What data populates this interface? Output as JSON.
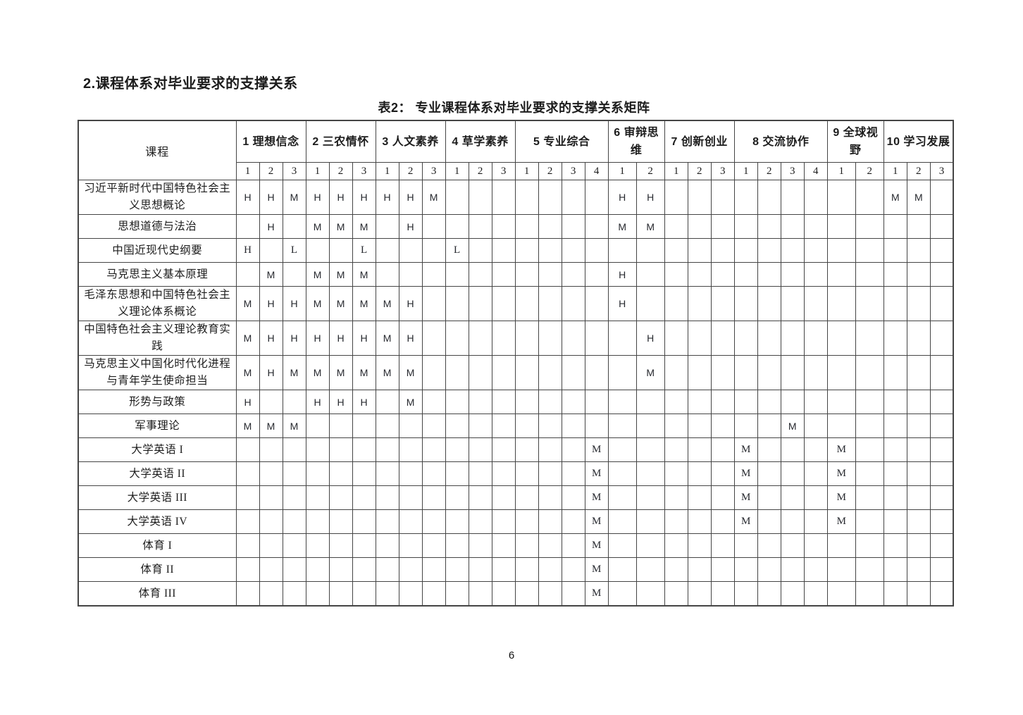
{
  "colors": {
    "ink": "#1c1c1c",
    "border": "#454545",
    "background": "#ffffff"
  },
  "page": {
    "heading": "2.课程体系对毕业要求的支撑关系",
    "caption": "表2： 专业课程体系对毕业要求的支撑关系矩阵",
    "page_number": "6"
  },
  "table": {
    "course_header": "课程",
    "groups": [
      {
        "label": "1 理想信念",
        "subcols": [
          "1",
          "2",
          "3"
        ]
      },
      {
        "label": "2 三农情怀",
        "subcols": [
          "1",
          "2",
          "3"
        ]
      },
      {
        "label": "3 人文素养",
        "subcols": [
          "1",
          "2",
          "3"
        ]
      },
      {
        "label": "4 草学素养",
        "subcols": [
          "1",
          "2",
          "3"
        ]
      },
      {
        "label": "5 专业综合",
        "subcols": [
          "1",
          "2",
          "3",
          "4"
        ]
      },
      {
        "label": "6 审辩思维",
        "subcols": [
          "1",
          "2"
        ]
      },
      {
        "label": "7 创新创业",
        "subcols": [
          "1",
          "2",
          "3"
        ]
      },
      {
        "label": "8 交流协作",
        "subcols": [
          "1",
          "2",
          "3",
          "4"
        ]
      },
      {
        "label": "9 全球视野",
        "subcols": [
          "1",
          "2"
        ]
      },
      {
        "label": "10 学习发展",
        "subcols": [
          "1",
          "2",
          "3"
        ]
      }
    ],
    "legend_levels": [
      "H",
      "M",
      "L"
    ],
    "rows": [
      {
        "course": "习近平新时代中国特色社会主义思想概论",
        "values": [
          "H",
          "H",
          "M",
          "H",
          "H",
          "H",
          "H",
          "H",
          "M",
          "",
          "",
          "",
          "",
          "",
          "",
          "",
          "H",
          "H",
          "",
          "",
          "",
          "",
          "",
          "",
          "",
          "",
          "",
          "M",
          "M",
          ""
        ]
      },
      {
        "course": "思想道德与法治",
        "values": [
          "",
          "H",
          "",
          "M",
          "M",
          "M",
          "",
          "H",
          "",
          "",
          "",
          "",
          "",
          "",
          "",
          "",
          "M",
          "M",
          "",
          "",
          "",
          "",
          "",
          "",
          "",
          "",
          "",
          "",
          "",
          ""
        ]
      },
      {
        "course": "中国近现代史纲要",
        "values": [
          "H",
          "",
          "L",
          "",
          "",
          "L",
          "",
          "",
          "",
          "L",
          "",
          "",
          "",
          "",
          "",
          "",
          "",
          "",
          "",
          "",
          "",
          "",
          "",
          "",
          "",
          "",
          "",
          "",
          "",
          ""
        ]
      },
      {
        "course": "马克思主义基本原理",
        "values": [
          "",
          "M",
          "",
          "M",
          "M",
          "M",
          "",
          "",
          "",
          "",
          "",
          "",
          "",
          "",
          "",
          "",
          "H",
          "",
          "",
          "",
          "",
          "",
          "",
          "",
          "",
          "",
          "",
          "",
          "",
          ""
        ]
      },
      {
        "course": "毛泽东思想和中国特色社会主义理论体系概论",
        "values": [
          "M",
          "H",
          "H",
          "M",
          "M",
          "M",
          "M",
          "H",
          "",
          "",
          "",
          "",
          "",
          "",
          "",
          "",
          "H",
          "",
          "",
          "",
          "",
          "",
          "",
          "",
          "",
          "",
          "",
          "",
          "",
          ""
        ]
      },
      {
        "course": "中国特色社会主义理论教育实践",
        "values": [
          "M",
          "H",
          "H",
          "H",
          "H",
          "H",
          "M",
          "H",
          "",
          "",
          "",
          "",
          "",
          "",
          "",
          "",
          "",
          "H",
          "",
          "",
          "",
          "",
          "",
          "",
          "",
          "",
          "",
          "",
          "",
          ""
        ]
      },
      {
        "course": "马克思主义中国化时代化进程与青年学生使命担当",
        "values": [
          "M",
          "H",
          "M",
          "M",
          "M",
          "M",
          "M",
          "M",
          "",
          "",
          "",
          "",
          "",
          "",
          "",
          "",
          "",
          "M",
          "",
          "",
          "",
          "",
          "",
          "",
          "",
          "",
          "",
          "",
          "",
          ""
        ]
      },
      {
        "course": "形势与政策",
        "values": [
          "H",
          "",
          "",
          "H",
          "H",
          "H",
          "",
          "M",
          "",
          "",
          "",
          "",
          "",
          "",
          "",
          "",
          "",
          "",
          "",
          "",
          "",
          "",
          "",
          "",
          "",
          "",
          "",
          "",
          "",
          ""
        ]
      },
      {
        "course": "军事理论",
        "values": [
          "M",
          "M",
          "M",
          "",
          "",
          "",
          "",
          "",
          "",
          "",
          "",
          "",
          "",
          "",
          "",
          "",
          "",
          "",
          "",
          "",
          "",
          "",
          "",
          "M",
          "",
          "",
          "",
          "",
          "",
          ""
        ]
      },
      {
        "course": "大学英语 I",
        "values": [
          "",
          "",
          "",
          "",
          "",
          "",
          "",
          "",
          "",
          "",
          "",
          "",
          "",
          "",
          "",
          "M",
          "",
          "",
          "",
          "",
          "",
          "M",
          "",
          "",
          "",
          "M",
          "",
          "",
          "",
          ""
        ]
      },
      {
        "course": "大学英语 II",
        "values": [
          "",
          "",
          "",
          "",
          "",
          "",
          "",
          "",
          "",
          "",
          "",
          "",
          "",
          "",
          "",
          "M",
          "",
          "",
          "",
          "",
          "",
          "M",
          "",
          "",
          "",
          "M",
          "",
          "",
          "",
          ""
        ]
      },
      {
        "course": "大学英语 III",
        "values": [
          "",
          "",
          "",
          "",
          "",
          "",
          "",
          "",
          "",
          "",
          "",
          "",
          "",
          "",
          "",
          "M",
          "",
          "",
          "",
          "",
          "",
          "M",
          "",
          "",
          "",
          "M",
          "",
          "",
          "",
          ""
        ]
      },
      {
        "course": "大学英语 IV",
        "values": [
          "",
          "",
          "",
          "",
          "",
          "",
          "",
          "",
          "",
          "",
          "",
          "",
          "",
          "",
          "",
          "M",
          "",
          "",
          "",
          "",
          "",
          "M",
          "",
          "",
          "",
          "M",
          "",
          "",
          "",
          ""
        ]
      },
      {
        "course": "体育 I",
        "values": [
          "",
          "",
          "",
          "",
          "",
          "",
          "",
          "",
          "",
          "",
          "",
          "",
          "",
          "",
          "",
          "M",
          "",
          "",
          "",
          "",
          "",
          "",
          "",
          "",
          "",
          "",
          "",
          "",
          "",
          ""
        ]
      },
      {
        "course": "体育 II",
        "values": [
          "",
          "",
          "",
          "",
          "",
          "",
          "",
          "",
          "",
          "",
          "",
          "",
          "",
          "",
          "",
          "M",
          "",
          "",
          "",
          "",
          "",
          "",
          "",
          "",
          "",
          "",
          "",
          "",
          "",
          ""
        ]
      },
      {
        "course": "体育 III",
        "values": [
          "",
          "",
          "",
          "",
          "",
          "",
          "",
          "",
          "",
          "",
          "",
          "",
          "",
          "",
          "",
          "M",
          "",
          "",
          "",
          "",
          "",
          "",
          "",
          "",
          "",
          "",
          "",
          "",
          "",
          ""
        ]
      }
    ]
  }
}
